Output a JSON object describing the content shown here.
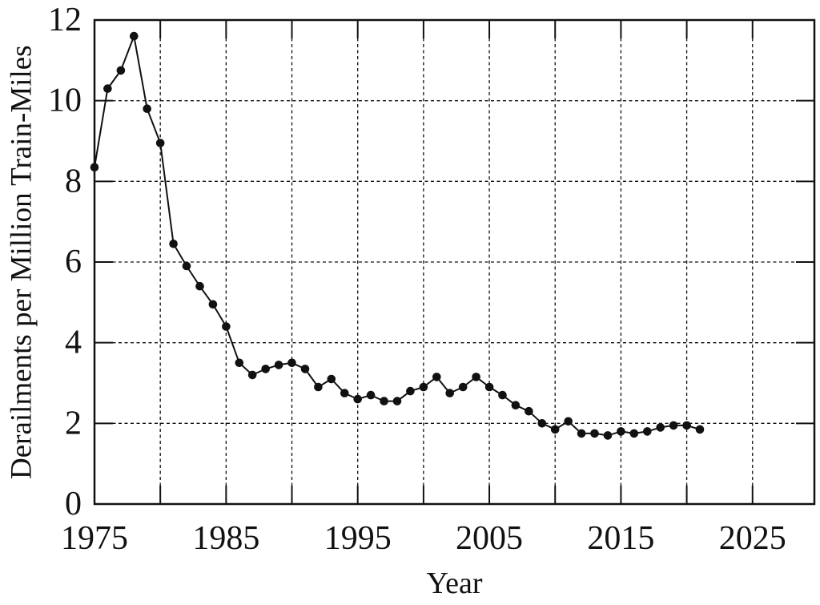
{
  "figure": {
    "background": "#ffffff",
    "ink_color": "#111111"
  },
  "chart_data": {
    "type": "line",
    "title": "",
    "xlabel": "Year",
    "ylabel": "Derailments per Million Train-Miles",
    "x_tick_labels": [
      1975,
      1985,
      1995,
      2005,
      2015,
      2025
    ],
    "x_gridlines": [
      1980,
      1985,
      1990,
      1995,
      2000,
      2005,
      2010,
      2015,
      2020,
      2025
    ],
    "y_tick_labels": [
      0,
      2,
      4,
      6,
      8,
      10,
      12
    ],
    "y_gridlines": [
      2,
      4,
      6,
      8,
      10
    ],
    "xlim": [
      1975,
      2029.7
    ],
    "ylim": [
      0,
      12
    ],
    "grid": "dashed",
    "legend": "none",
    "marker": "filled-circle",
    "line_color": "#111111",
    "series": [
      {
        "name": "derailments-per-million-train-miles",
        "x": [
          1975,
          1976,
          1977,
          1978,
          1979,
          1980,
          1981,
          1982,
          1983,
          1984,
          1985,
          1986,
          1987,
          1988,
          1989,
          1990,
          1991,
          1992,
          1993,
          1994,
          1995,
          1996,
          1997,
          1998,
          1999,
          2000,
          2001,
          2002,
          2003,
          2004,
          2005,
          2006,
          2007,
          2008,
          2009,
          2010,
          2011,
          2012,
          2013,
          2014,
          2015,
          2016,
          2017,
          2018,
          2019,
          2020,
          2021
        ],
        "y": [
          8.35,
          10.3,
          10.75,
          11.6,
          9.8,
          8.95,
          6.45,
          5.9,
          5.4,
          4.95,
          4.4,
          3.5,
          3.2,
          3.35,
          3.45,
          3.5,
          3.35,
          2.9,
          3.1,
          2.75,
          2.6,
          2.7,
          2.55,
          2.55,
          2.8,
          2.9,
          3.15,
          2.75,
          2.9,
          3.15,
          2.9,
          2.7,
          2.45,
          2.3,
          2.0,
          1.85,
          2.05,
          1.75,
          1.75,
          1.7,
          1.8,
          1.75,
          1.8,
          1.9,
          1.95,
          1.95,
          1.85
        ]
      }
    ]
  }
}
